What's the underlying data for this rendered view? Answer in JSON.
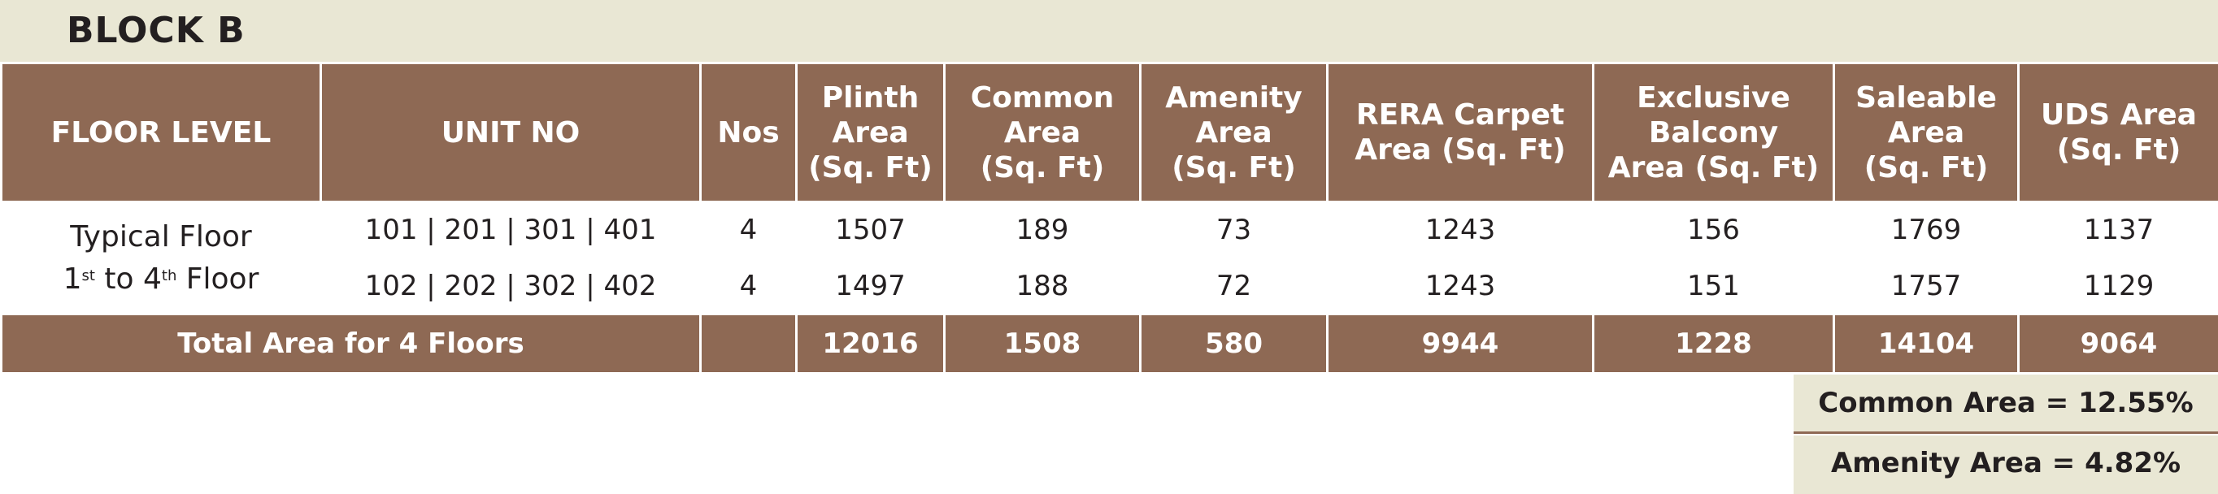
{
  "block_title": "BLOCK B",
  "headers": {
    "floor_level": "FLOOR LEVEL",
    "unit_no": "UNIT NO",
    "nos": "Nos",
    "plinth": [
      "Plinth",
      "Area",
      "(Sq. Ft)"
    ],
    "common": [
      "Common",
      "Area",
      "(Sq. Ft)"
    ],
    "amenity": [
      "Amenity",
      "Area",
      "(Sq. Ft)"
    ],
    "rera": [
      "RERA Carpet",
      "Area (Sq. Ft)"
    ],
    "balcony": [
      "Exclusive",
      "Balcony",
      "Area (Sq. Ft)"
    ],
    "saleable": [
      "Saleable",
      "Area",
      "(Sq. Ft)"
    ],
    "uds": [
      "UDS Area",
      "(Sq. Ft)"
    ]
  },
  "floor_group": {
    "line1": "Typical Floor",
    "line2_start": "1",
    "line2_sup1": "st",
    "line2_mid": " to 4",
    "line2_sup2": "th",
    "line2_end": " Floor"
  },
  "rows": [
    {
      "unit_no": "101 | 201 | 301 | 401",
      "nos": "4",
      "plinth": "1507",
      "common": "189",
      "amenity": "73",
      "rera": "1243",
      "balcony": "156",
      "saleable": "1769",
      "uds": "1137"
    },
    {
      "unit_no": "102 | 202 | 302 | 402",
      "nos": "4",
      "plinth": "1497",
      "common": "188",
      "amenity": "72",
      "rera": "1243",
      "balcony": "151",
      "saleable": "1757",
      "uds": "1129"
    }
  ],
  "total": {
    "label": "Total Area for 4 Floors",
    "nos": "",
    "plinth": "12016",
    "common": "1508",
    "amenity": "580",
    "rera": "9944",
    "balcony": "1228",
    "saleable": "14104",
    "uds": "9064"
  },
  "summary": {
    "common": "Common Area = 12.55%",
    "amenity": "Amenity Area =  4.82%"
  },
  "colors": {
    "header_brown": "#8e6954",
    "beige": "#e9e7d4",
    "text_dark": "#231f20"
  }
}
